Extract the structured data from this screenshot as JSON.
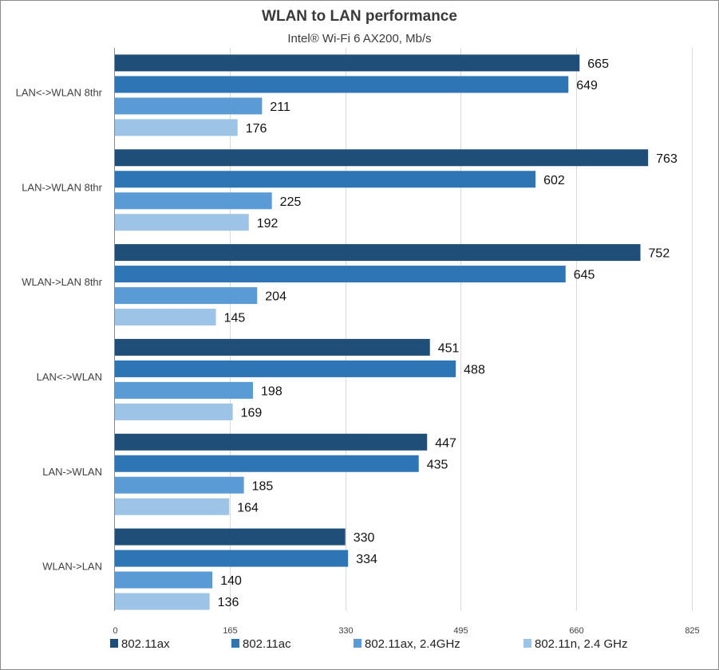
{
  "chart_data": {
    "type": "bar",
    "orientation": "horizontal",
    "title": "WLAN to LAN performance",
    "subtitle": "Intel® Wi-Fi 6 AX200, Mb/s",
    "xlabel": "",
    "ylabel": "",
    "xlim": [
      0,
      825
    ],
    "xticks": [
      0,
      165,
      330,
      495,
      660,
      825
    ],
    "grid": true,
    "legend_position": "bottom",
    "categories": [
      "LAN<->WLAN 8thr",
      "LAN->WLAN 8thr",
      "WLAN->LAN 8thr",
      "LAN<->WLAN",
      "LAN->WLAN",
      "WLAN->LAN"
    ],
    "series": [
      {
        "name": "802.11ax",
        "color": "#1f4e79",
        "values": [
          665,
          763,
          752,
          451,
          447,
          330
        ]
      },
      {
        "name": "802.11ac",
        "color": "#2e75b6",
        "values": [
          649,
          602,
          645,
          488,
          435,
          334
        ]
      },
      {
        "name": "802.11ax, 2.4GHz",
        "color": "#5b9bd5",
        "values": [
          211,
          225,
          204,
          198,
          185,
          140
        ]
      },
      {
        "name": "802.11n, 2.4 GHz",
        "color": "#9dc3e6",
        "values": [
          176,
          192,
          145,
          169,
          164,
          136
        ]
      }
    ]
  }
}
